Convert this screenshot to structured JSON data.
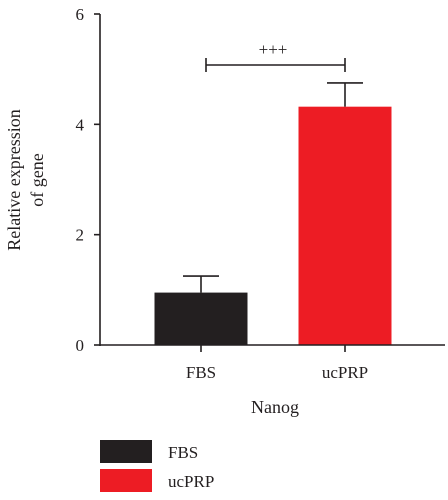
{
  "chart_data": {
    "type": "bar",
    "xlabel": "Nanog",
    "ylabel": [
      "Relative expression",
      "of gene"
    ],
    "ylim": [
      0,
      6
    ],
    "yticks": [
      "0",
      "2",
      "4",
      "6"
    ],
    "categories": [
      "FBS",
      "ucPRP"
    ],
    "values": [
      0.95,
      4.32
    ],
    "errors": [
      0.3,
      0.43
    ],
    "colors": [
      "#231f20",
      "#ed1c24"
    ],
    "significance": {
      "between": [
        "FBS",
        "ucPRP"
      ],
      "label": "+++"
    },
    "legend": {
      "position": "bottom-left",
      "entries": [
        {
          "label": "FBS",
          "color": "#231f20"
        },
        {
          "label": "ucPRP",
          "color": "#ed1c24"
        }
      ]
    }
  }
}
